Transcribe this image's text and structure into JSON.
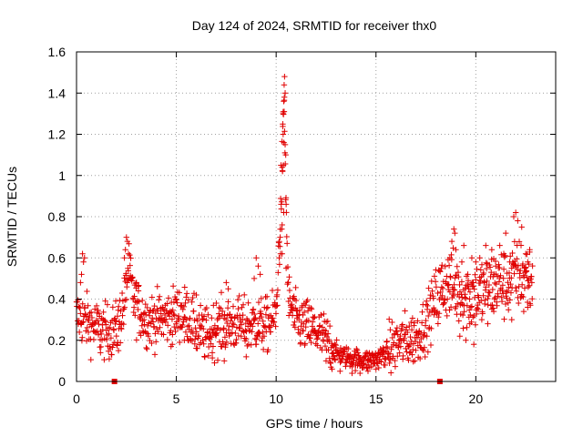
{
  "chart_data": {
    "type": "scatter",
    "title": "Day 124 of 2024, SRMTID for receiver thx0",
    "xlabel": "GPS time / hours",
    "ylabel": "SRMTID / TECUs",
    "xlim": [
      0,
      24
    ],
    "ylim": [
      0,
      1.6
    ],
    "xticks": [
      0,
      5,
      10,
      15,
      20
    ],
    "xtick_labels": [
      "0",
      "5",
      "10",
      "15",
      "20"
    ],
    "yticks": [
      0,
      0.2,
      0.4,
      0.6,
      0.8,
      1.0,
      1.2,
      1.4,
      1.6
    ],
    "ytick_labels": [
      "0",
      "0.2",
      "0.4",
      "0.6",
      "0.8",
      "1",
      "1.2",
      "1.4",
      "1.6"
    ],
    "grid": true,
    "marker": "+",
    "series_color": "#e00000",
    "trend": [
      [
        0.0,
        0.32
      ],
      [
        0.5,
        0.29
      ],
      [
        1.0,
        0.26
      ],
      [
        1.5,
        0.24
      ],
      [
        2.0,
        0.25
      ],
      [
        2.4,
        0.38
      ],
      [
        2.6,
        0.55
      ],
      [
        2.9,
        0.38
      ],
      [
        3.5,
        0.3
      ],
      [
        4.0,
        0.3
      ],
      [
        4.5,
        0.31
      ],
      [
        5.0,
        0.33
      ],
      [
        5.5,
        0.33
      ],
      [
        6.0,
        0.25
      ],
      [
        6.5,
        0.22
      ],
      [
        7.0,
        0.26
      ],
      [
        7.5,
        0.27
      ],
      [
        8.0,
        0.28
      ],
      [
        8.5,
        0.27
      ],
      [
        9.0,
        0.28
      ],
      [
        9.5,
        0.27
      ],
      [
        10.0,
        0.32
      ],
      [
        10.25,
        0.9
      ],
      [
        10.4,
        1.3
      ],
      [
        10.6,
        0.4
      ],
      [
        11.0,
        0.29
      ],
      [
        11.5,
        0.27
      ],
      [
        12.0,
        0.24
      ],
      [
        12.5,
        0.2
      ],
      [
        13.0,
        0.14
      ],
      [
        13.5,
        0.12
      ],
      [
        14.0,
        0.11
      ],
      [
        14.5,
        0.1
      ],
      [
        15.0,
        0.11
      ],
      [
        15.5,
        0.14
      ],
      [
        16.0,
        0.18
      ],
      [
        16.5,
        0.2
      ],
      [
        17.0,
        0.21
      ],
      [
        17.5,
        0.28
      ],
      [
        18.0,
        0.4
      ],
      [
        18.5,
        0.48
      ],
      [
        19.0,
        0.45
      ],
      [
        19.5,
        0.42
      ],
      [
        20.0,
        0.42
      ],
      [
        20.5,
        0.45
      ],
      [
        21.0,
        0.48
      ],
      [
        21.5,
        0.47
      ],
      [
        22.0,
        0.52
      ],
      [
        22.5,
        0.52
      ],
      [
        22.8,
        0.48
      ]
    ],
    "points": [
      [
        10.25,
        0.86
      ],
      [
        10.3,
        1.04
      ],
      [
        10.32,
        1.02
      ],
      [
        10.35,
        1.2
      ],
      [
        10.38,
        1.36
      ],
      [
        10.4,
        1.44
      ],
      [
        10.42,
        1.48
      ],
      [
        10.45,
        1.4
      ],
      [
        10.35,
        1.3
      ],
      [
        10.4,
        1.31
      ],
      [
        10.48,
        1.1
      ],
      [
        10.3,
        0.76
      ],
      [
        10.28,
        0.74
      ],
      [
        10.5,
        0.86
      ],
      [
        10.2,
        0.7
      ],
      [
        10.3,
        0.62
      ],
      [
        10.22,
        0.62
      ],
      [
        10.38,
        0.82
      ],
      [
        10.45,
        1.15
      ],
      [
        10.33,
        1.25
      ],
      [
        10.5,
        0.55
      ],
      [
        10.6,
        0.48
      ],
      [
        10.15,
        0.6
      ],
      [
        10.41,
        1.38
      ],
      [
        10.36,
        1.05
      ],
      [
        2.5,
        0.7
      ],
      [
        2.55,
        0.68
      ],
      [
        2.45,
        0.64
      ],
      [
        2.6,
        0.62
      ],
      [
        2.4,
        0.6
      ],
      [
        0.3,
        0.62
      ],
      [
        0.35,
        0.58
      ],
      [
        0.25,
        0.52
      ],
      [
        0.4,
        0.6
      ],
      [
        0.2,
        0.48
      ],
      [
        9.0,
        0.6
      ],
      [
        9.1,
        0.56
      ],
      [
        8.9,
        0.5
      ],
      [
        9.2,
        0.52
      ],
      [
        7.5,
        0.48
      ],
      [
        7.6,
        0.45
      ],
      [
        7.0,
        0.38
      ],
      [
        3.0,
        0.48
      ],
      [
        3.1,
        0.44
      ],
      [
        6.0,
        0.42
      ],
      [
        18.9,
        0.74
      ],
      [
        18.95,
        0.72
      ],
      [
        18.8,
        0.68
      ],
      [
        19.0,
        0.64
      ],
      [
        18.7,
        0.6
      ],
      [
        19.3,
        0.58
      ],
      [
        19.4,
        0.66
      ],
      [
        19.6,
        0.52
      ],
      [
        20.0,
        0.58
      ],
      [
        20.2,
        0.6
      ],
      [
        20.8,
        0.64
      ],
      [
        21.2,
        0.66
      ],
      [
        21.5,
        0.72
      ],
      [
        21.9,
        0.8
      ],
      [
        22.0,
        0.82
      ],
      [
        22.1,
        0.78
      ],
      [
        22.3,
        0.75
      ],
      [
        22.5,
        0.62
      ],
      [
        22.7,
        0.64
      ],
      [
        22.6,
        0.58
      ],
      [
        21.7,
        0.58
      ],
      [
        21.4,
        0.62
      ],
      [
        20.5,
        0.66
      ],
      [
        19.8,
        0.6
      ],
      [
        21.0,
        0.56
      ],
      [
        19.2,
        0.22
      ],
      [
        19.5,
        0.2
      ],
      [
        19.7,
        0.28
      ],
      [
        19.9,
        0.18
      ],
      [
        20.3,
        0.3
      ],
      [
        20.6,
        0.28
      ],
      [
        20.9,
        0.34
      ],
      [
        21.8,
        0.3
      ],
      [
        22.4,
        0.34
      ],
      [
        22.6,
        0.36
      ],
      [
        13.2,
        0.05
      ],
      [
        13.8,
        0.04
      ],
      [
        14.2,
        0.04
      ],
      [
        14.6,
        0.05
      ],
      [
        15.0,
        0.06
      ],
      [
        12.8,
        0.06
      ],
      [
        12.5,
        0.1
      ],
      [
        15.4,
        0.08
      ],
      [
        7.4,
        0.1
      ],
      [
        8.5,
        0.12
      ],
      [
        6.8,
        0.14
      ],
      [
        1.2,
        0.14
      ],
      [
        2.1,
        0.15
      ],
      [
        4.8,
        0.18
      ],
      [
        5.4,
        0.2
      ]
    ],
    "special_markers": [
      [
        1.9,
        0
      ],
      [
        18.2,
        0
      ]
    ]
  }
}
